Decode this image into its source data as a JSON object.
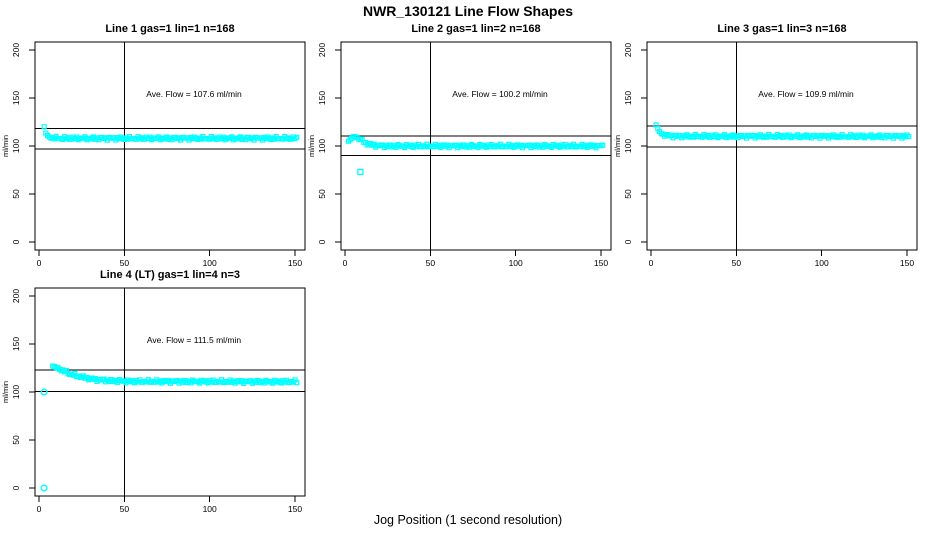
{
  "page_title": "NWR_130121  Line Flow Shapes",
  "xlabel": "Jog Position (1 second resolution)",
  "colors": {
    "point": "#00FFFF",
    "axis": "#000000",
    "text": "#000000",
    "background": "#FFFFFF"
  },
  "chart_data": [
    {
      "type": "scatter",
      "title": "Line 1 gas=1 lin=1 n=168",
      "annotation": "Ave. Flow =  107.6  ml/min",
      "ave_flow": 107.6,
      "n": 168,
      "ylabel": "ml/min",
      "x_ticks": [
        0,
        50,
        100,
        150
      ],
      "y_ticks": [
        0,
        50,
        100,
        150,
        200
      ],
      "xlim": [
        0,
        152
      ],
      "ylim": [
        0,
        200
      ],
      "vline_x": 50,
      "ref_lines": [
        96.8,
        118.4
      ],
      "marker": "square",
      "x_points_range": [
        3,
        151
      ],
      "curve_anchors": [
        [
          3,
          120
        ],
        [
          4,
          113.5
        ],
        [
          5,
          110.5
        ],
        [
          6,
          109.3
        ],
        [
          8,
          108.5
        ],
        [
          12,
          108
        ],
        [
          151,
          108
        ]
      ],
      "outliers": []
    },
    {
      "type": "scatter",
      "title": "Line 2 gas=1 lin=2 n=168",
      "annotation": "Ave. Flow =  100.2  ml/min",
      "ave_flow": 100.2,
      "n": 168,
      "ylabel": "ml/min",
      "x_ticks": [
        0,
        50,
        100,
        150
      ],
      "y_ticks": [
        0,
        50,
        100,
        150,
        200
      ],
      "xlim": [
        0,
        152
      ],
      "ylim": [
        0,
        200
      ],
      "vline_x": 50,
      "ref_lines": [
        90.2,
        110.2
      ],
      "marker": "square",
      "x_points_range": [
        2,
        151
      ],
      "curve_anchors": [
        [
          2,
          105
        ],
        [
          4,
          108
        ],
        [
          6,
          110
        ],
        [
          9,
          107
        ],
        [
          12,
          103
        ],
        [
          16,
          101
        ],
        [
          22,
          100
        ],
        [
          151,
          100
        ]
      ],
      "outliers": [
        {
          "x": 9,
          "y": 73,
          "marker": "square"
        }
      ]
    },
    {
      "type": "scatter",
      "title": "Line 3 gas=1 lin=3 n=168",
      "annotation": "Ave. Flow =  109.9  ml/min",
      "ave_flow": 109.9,
      "n": 168,
      "ylabel": "ml/min",
      "x_ticks": [
        0,
        50,
        100,
        150
      ],
      "y_ticks": [
        0,
        50,
        100,
        150,
        200
      ],
      "xlim": [
        0,
        152
      ],
      "ylim": [
        0,
        200
      ],
      "vline_x": 50,
      "ref_lines": [
        98.9,
        120.9
      ],
      "marker": "square",
      "x_points_range": [
        3,
        151
      ],
      "curve_anchors": [
        [
          3,
          122
        ],
        [
          4,
          118
        ],
        [
          5,
          114.5
        ],
        [
          7,
          112
        ],
        [
          10,
          110.8
        ],
        [
          15,
          110.2
        ],
        [
          151,
          110
        ]
      ],
      "outliers": []
    },
    {
      "type": "scatter",
      "title": "Line 4 (LT) gas=1 lin=4 n=3",
      "annotation": "Ave. Flow =  111.5  ml/min",
      "ave_flow": 111.5,
      "n": 3,
      "ylabel": "ml/min",
      "x_ticks": [
        0,
        50,
        100,
        150
      ],
      "y_ticks": [
        0,
        50,
        100,
        150,
        200
      ],
      "xlim": [
        0,
        152
      ],
      "ylim": [
        0,
        200
      ],
      "vline_x": 50,
      "ref_lines": [
        100.4,
        122.7
      ],
      "marker": "square",
      "x_points_range": [
        8,
        151
      ],
      "curve_anchors": [
        [
          8,
          127
        ],
        [
          12,
          124
        ],
        [
          18,
          119
        ],
        [
          25,
          115.5
        ],
        [
          33,
          113
        ],
        [
          42,
          111.8
        ],
        [
          55,
          111
        ],
        [
          151,
          110.7
        ]
      ],
      "outliers": [
        {
          "x": 3,
          "y": 100,
          "marker": "circle"
        },
        {
          "x": 3,
          "y": 0,
          "marker": "circle"
        }
      ]
    }
  ]
}
